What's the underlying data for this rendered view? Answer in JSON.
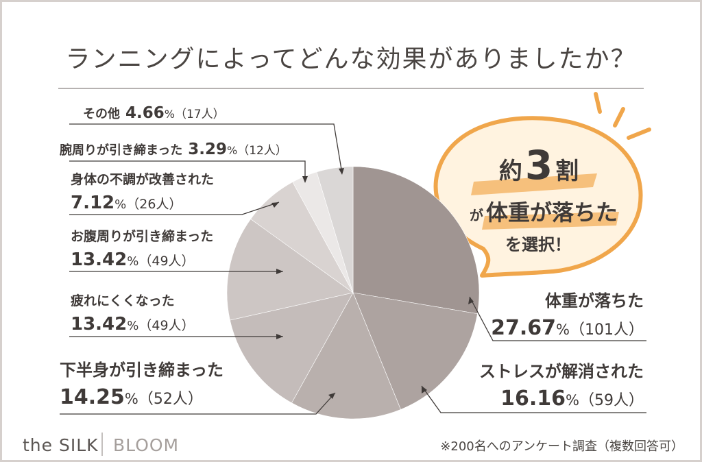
{
  "title": "ランニングによってどんな効果がありましたか？",
  "chart_data": {
    "type": "pie",
    "slices": [
      {
        "label": "体重が落ちた",
        "percent": 27.67,
        "count": "101人",
        "color": "#a09592"
      },
      {
        "label": "ストレスが解消された",
        "percent": 16.16,
        "count": "59人",
        "color": "#ada3a0"
      },
      {
        "label": "下半身が引き締まった",
        "percent": 14.25,
        "count": "52人",
        "color": "#b9b0ad"
      },
      {
        "label": "疲れにくくなった",
        "percent": 13.42,
        "count": "49人",
        "color": "#c4bcba"
      },
      {
        "label": "お腹周りが引き締まった",
        "percent": 13.42,
        "count": "49人",
        "color": "#cdc6c4"
      },
      {
        "label": "身体の不調が改善された",
        "percent": 7.12,
        "count": "26人",
        "color": "#d9d3d1"
      },
      {
        "label": "腕周りが引き締まった",
        "percent": 3.29,
        "count": "12人",
        "color": "#ebe8e7"
      },
      {
        "label": "その他",
        "percent": 4.66,
        "count": "17人",
        "color": "#dad7d6"
      }
    ]
  },
  "callout": {
    "line1_prefix": "約",
    "line1_number": "3",
    "line1_suffix": "割",
    "line2_small": "が",
    "line2_main": "体重が落ちた",
    "line3": "を選択！"
  },
  "labels": {
    "percent_sign": "%",
    "count_open": "（",
    "count_close": "）"
  },
  "brand": {
    "logo_left": "the SILK",
    "logo_right": "BLOOM"
  },
  "footnote": "※200名へのアンケート調査（複数回答可）",
  "colors": {
    "accent_orange": "#f0a64b",
    "text": "#3f3a38",
    "border": "#d6d0cd"
  }
}
